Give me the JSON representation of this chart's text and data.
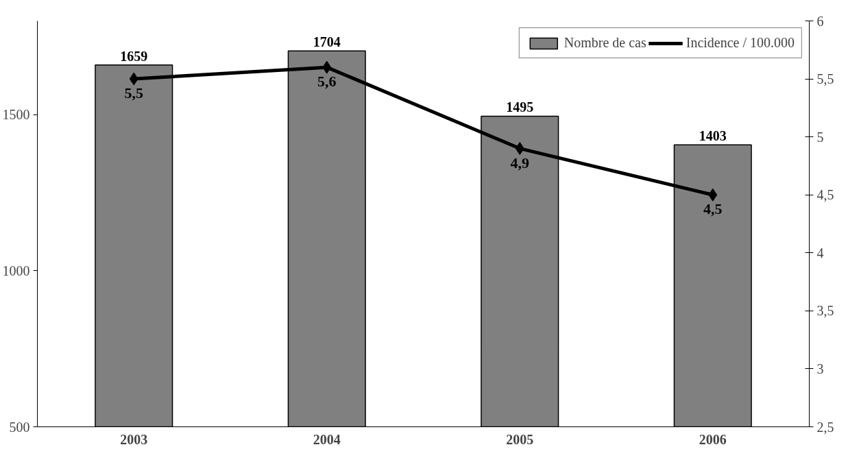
{
  "chart_data": {
    "type": "bar",
    "categories": [
      "2003",
      "2004",
      "2005",
      "2006"
    ],
    "series": [
      {
        "name": "Nombre de cas",
        "color": "#808080",
        "values": [
          1659,
          1704,
          1495,
          1403
        ]
      },
      {
        "name": "Incidence / 100.000",
        "type": "line",
        "axis": "y2",
        "color": "#000000",
        "marker": "diamond",
        "values": [
          5.5,
          5.6,
          4.9,
          4.5
        ],
        "value_labels": [
          "5,5",
          "5,6",
          "4,9",
          "4,5"
        ]
      }
    ],
    "ylim": [
      500,
      1800
    ],
    "yticks": [
      500,
      1000,
      1500
    ],
    "y2lim": [
      2.5,
      6
    ],
    "y2ticks": [
      {
        "value": 2.5,
        "label": "2,5"
      },
      3,
      {
        "value": 3.5,
        "label": "3,5"
      },
      4,
      {
        "value": 4.5,
        "label": "4,5"
      },
      5,
      {
        "value": 5.5,
        "label": "5,5"
      },
      6
    ],
    "data_labels": true,
    "legend": "top right",
    "grid": false
  }
}
